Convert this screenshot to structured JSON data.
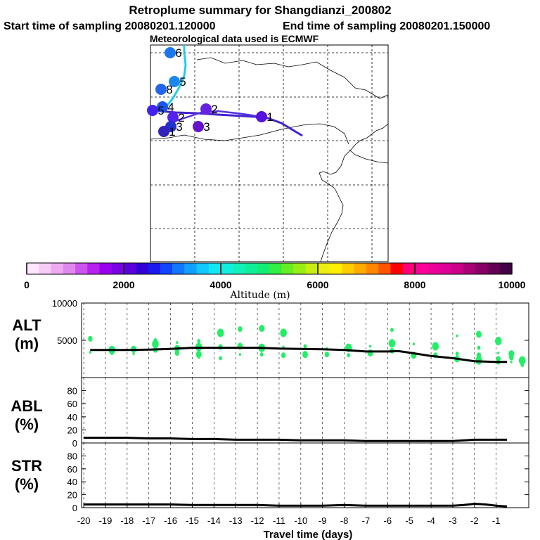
{
  "header": {
    "title": "Retroplume summary for Shangdianzi_200802",
    "start_label": "Start time of sampling 20080201.120000",
    "end_label": "End time of sampling 20080201.150000",
    "met_label": "Meteorological data used is ECMWF"
  },
  "colorbar": {
    "label": "Altitude (m)",
    "ticks": [
      "0",
      "2000",
      "4000",
      "6000",
      "8000",
      "10000"
    ],
    "min": 0,
    "max": 10000,
    "colors": [
      "#ffe6ff",
      "#f7ccf7",
      "#eeaaf0",
      "#e088ee",
      "#cc55ee",
      "#b722ee",
      "#9900ee",
      "#7a00e6",
      "#5a00dd",
      "#3300d6",
      "#1a1aee",
      "#1144ff",
      "#1177ff",
      "#11a0ff",
      "#11c8ff",
      "#11e8f5",
      "#11f0e0",
      "#11f0bb",
      "#11ee99",
      "#11ee77",
      "#33ee44",
      "#66ee22",
      "#99ee11",
      "#c8ee11",
      "#eeee11",
      "#ffee00",
      "#ffcc00",
      "#ffaa00",
      "#ff8800",
      "#ff5500",
      "#ff0000",
      "#ff0077",
      "#ff0099",
      "#ee0099",
      "#dd0099",
      "#cc0088",
      "#aa0077",
      "#880066",
      "#660055",
      "#440044"
    ]
  },
  "map": {
    "trajectory_main": [
      "#4422cc",
      "#5533dd"
    ],
    "trajectory_alt": "#22ccee",
    "markers": [
      {
        "label": "6",
        "color": "#1a77ee"
      },
      {
        "label": "5",
        "color": "#1a88ee"
      },
      {
        "label": "8",
        "color": "#2266ee"
      },
      {
        "label": "4",
        "color": "#1a55ee"
      },
      {
        "label": "5",
        "color": "#4422ee"
      },
      {
        "label": "2",
        "color": "#6622dd"
      },
      {
        "label": "2",
        "color": "#5522ee"
      },
      {
        "label": "1",
        "color": "#5511dd"
      },
      {
        "label": "3",
        "color": "#2233cc"
      },
      {
        "label": "3",
        "color": "#6611cc"
      },
      {
        "label": "1",
        "color": "#3322bb"
      }
    ]
  },
  "chart_data": [
    {
      "type": "line",
      "panel": "ALT",
      "ylabel_line1": "ALT",
      "ylabel_line2": "(m)",
      "ylim": [
        0,
        10000
      ],
      "yticks": [
        "10000",
        "5000"
      ],
      "x": [
        -19.7,
        -19,
        -18,
        -17,
        -16,
        -15,
        -14,
        -13,
        -12,
        -11,
        -10,
        -9,
        -8,
        -7,
        -6,
        -5.5,
        -5,
        -4,
        -3,
        -2,
        -1,
        -0.5
      ],
      "series": [
        {
          "name": "median altitude",
          "color": "#000000",
          "values": [
            3700,
            3700,
            3700,
            3750,
            3850,
            4000,
            4000,
            4000,
            4000,
            3900,
            3850,
            3800,
            3700,
            3500,
            3500,
            3550,
            3350,
            2900,
            2600,
            2200,
            2100,
            2100
          ]
        }
      ],
      "scatter": {
        "name": "particle clusters",
        "color": "#22ee66",
        "points": [
          [
            -19.7,
            3400
          ],
          [
            -19.7,
            5200
          ],
          [
            -18.7,
            3700
          ],
          [
            -18.7,
            3300
          ],
          [
            -17.7,
            3800
          ],
          [
            -17.7,
            3200
          ],
          [
            -16.7,
            3700
          ],
          [
            -16.7,
            4500
          ],
          [
            -16.7,
            5000
          ],
          [
            -15.7,
            3900
          ],
          [
            -15.7,
            4700
          ],
          [
            -15.7,
            3300
          ],
          [
            -14.7,
            4100
          ],
          [
            -14.7,
            4900
          ],
          [
            -14.7,
            3100
          ],
          [
            -14.7,
            2700
          ],
          [
            -13.7,
            4100
          ],
          [
            -13.7,
            6000
          ],
          [
            -13.7,
            2600
          ],
          [
            -12.8,
            4200
          ],
          [
            -12.8,
            3100
          ],
          [
            -12.8,
            6500
          ],
          [
            -11.8,
            4000
          ],
          [
            -11.8,
            3100
          ],
          [
            -11.8,
            6600
          ],
          [
            -10.8,
            4100
          ],
          [
            -10.8,
            3000
          ],
          [
            -10.8,
            6000
          ],
          [
            -9.8,
            4200
          ],
          [
            -9.8,
            3100
          ],
          [
            -8.8,
            3900
          ],
          [
            -8.8,
            3100
          ],
          [
            -7.8,
            4000
          ],
          [
            -7.8,
            3000
          ],
          [
            -6.8,
            3300
          ],
          [
            -6.8,
            4200
          ],
          [
            -5.8,
            3600
          ],
          [
            -5.8,
            4600
          ],
          [
            -5.8,
            6400
          ],
          [
            -4.8,
            3000
          ],
          [
            -4.8,
            4500
          ],
          [
            -3.8,
            3000
          ],
          [
            -3.8,
            4200
          ],
          [
            -2.8,
            3200
          ],
          [
            -2.8,
            2500
          ],
          [
            -2.8,
            5600
          ],
          [
            -1.8,
            3000
          ],
          [
            -1.8,
            2300
          ],
          [
            -1.8,
            4000
          ],
          [
            -1.8,
            5800
          ],
          [
            -0.9,
            3300
          ],
          [
            -0.9,
            2500
          ],
          [
            -0.9,
            4900
          ],
          [
            -0.9,
            2000
          ],
          [
            -0.3,
            3200
          ],
          [
            -0.3,
            2100
          ],
          [
            -0.3,
            2700
          ],
          [
            0.2,
            2300
          ],
          [
            0.2,
            1700
          ]
        ]
      }
    },
    {
      "type": "line",
      "panel": "ABL",
      "ylabel_line1": "ABL",
      "ylabel_line2": "(%)",
      "ylim": [
        0,
        100
      ],
      "yticks": [
        "80",
        "60",
        "40",
        "20",
        "0"
      ],
      "x": [
        -20,
        -19,
        -18,
        -17,
        -16,
        -15,
        -14,
        -13,
        -12,
        -11,
        -10,
        -9,
        -8,
        -7,
        -6,
        -5,
        -4,
        -3,
        -2,
        -1,
        -0.5
      ],
      "series": [
        {
          "name": "ABL fraction",
          "color": "#000000",
          "values": [
            8,
            8,
            8,
            7,
            7,
            6,
            6,
            5,
            5,
            5,
            4,
            4,
            4,
            3,
            3,
            3,
            3,
            3,
            5,
            5,
            5
          ]
        }
      ]
    },
    {
      "type": "line",
      "panel": "STR",
      "ylabel_line1": "STR",
      "ylabel_line2": "(%)",
      "ylim": [
        0,
        100
      ],
      "yticks": [
        "80",
        "60",
        "40",
        "20",
        "0"
      ],
      "x": [
        -20,
        -19,
        -18,
        -17,
        -16,
        -15,
        -14,
        -13,
        -12,
        -11,
        -10,
        -9,
        -8,
        -7,
        -6,
        -5,
        -4,
        -3,
        -2.5,
        -2,
        -1.5,
        -1,
        -0.5
      ],
      "series": [
        {
          "name": "stratospheric fraction",
          "color": "#000000",
          "values": [
            5,
            5,
            5,
            5,
            5,
            4,
            4,
            4,
            4,
            3,
            3,
            3,
            4,
            3,
            3,
            3,
            3,
            3,
            4,
            6,
            5,
            3,
            2
          ]
        }
      ]
    }
  ],
  "x_axis": {
    "label": "Travel time (days)",
    "ticks": [
      "-20",
      "-19",
      "-18",
      "-17",
      "-16",
      "-15",
      "-14",
      "-13",
      "-12",
      "-11",
      "-10",
      "-9",
      "-8",
      "-7",
      "-6",
      "-5",
      "-4",
      "-3",
      "-2",
      "-1"
    ]
  }
}
